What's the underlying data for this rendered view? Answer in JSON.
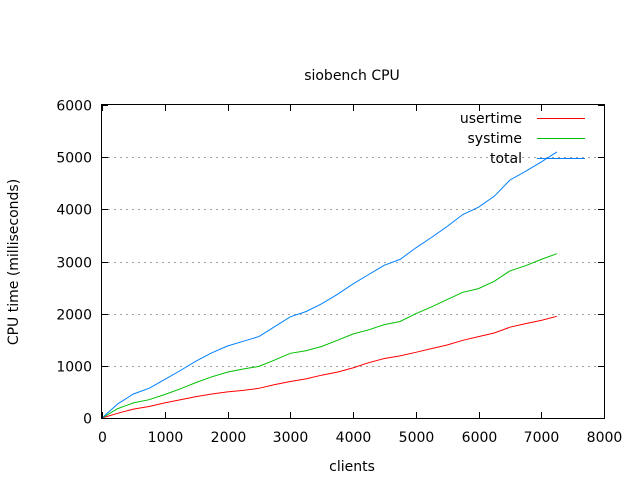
{
  "chart_data": {
    "type": "line",
    "title": "siobench CPU",
    "xlabel": "clients",
    "ylabel": "CPU time (milliseconds)",
    "xlim": [
      0,
      8000
    ],
    "ylim": [
      0,
      6000
    ],
    "xticks": [
      0,
      1000,
      2000,
      3000,
      4000,
      5000,
      6000,
      7000,
      8000
    ],
    "yticks": [
      0,
      1000,
      2000,
      3000,
      4000,
      5000,
      6000
    ],
    "grid": "horizontal dotted",
    "legend_position": "top-right",
    "series": [
      {
        "name": "usertime",
        "color": "#ff0000",
        "x": [
          0,
          250,
          500,
          750,
          1000,
          1250,
          1500,
          1750,
          2000,
          2250,
          2500,
          2750,
          3000,
          3250,
          3500,
          3750,
          4000,
          4250,
          4500,
          4750,
          5000,
          5250,
          5500,
          5750,
          6000,
          6250,
          6500,
          6750,
          7000,
          7250
        ],
        "y": [
          0,
          90,
          170,
          220,
          290,
          350,
          410,
          460,
          500,
          530,
          570,
          640,
          700,
          750,
          820,
          880,
          960,
          1060,
          1140,
          1190,
          1260,
          1330,
          1400,
          1490,
          1560,
          1630,
          1740,
          1810,
          1870,
          1950
        ]
      },
      {
        "name": "systime",
        "color": "#00c000",
        "x": [
          0,
          250,
          500,
          750,
          1000,
          1250,
          1500,
          1750,
          2000,
          2250,
          2500,
          2750,
          3000,
          3250,
          3500,
          3750,
          4000,
          4250,
          4500,
          4750,
          5000,
          5250,
          5500,
          5750,
          6000,
          6250,
          6500,
          6750,
          7000,
          7250
        ],
        "y": [
          0,
          180,
          290,
          350,
          450,
          560,
          680,
          790,
          880,
          940,
          990,
          1110,
          1240,
          1290,
          1370,
          1490,
          1610,
          1690,
          1790,
          1850,
          2000,
          2130,
          2270,
          2410,
          2480,
          2620,
          2820,
          2920,
          3040,
          3150
        ]
      },
      {
        "name": "total",
        "color": "#0080ff",
        "x": [
          0,
          250,
          500,
          750,
          1000,
          1250,
          1500,
          1750,
          2000,
          2250,
          2500,
          2750,
          3000,
          3250,
          3500,
          3750,
          4000,
          4250,
          4500,
          4750,
          5000,
          5250,
          5500,
          5750,
          6000,
          6250,
          6500,
          6750,
          7000,
          7250
        ],
        "y": [
          0,
          270,
          460,
          570,
          740,
          910,
          1090,
          1250,
          1380,
          1470,
          1560,
          1750,
          1940,
          2040,
          2190,
          2370,
          2570,
          2750,
          2930,
          3040,
          3260,
          3460,
          3670,
          3900,
          4040,
          4250,
          4560,
          4730,
          4910,
          5100
        ]
      }
    ]
  }
}
